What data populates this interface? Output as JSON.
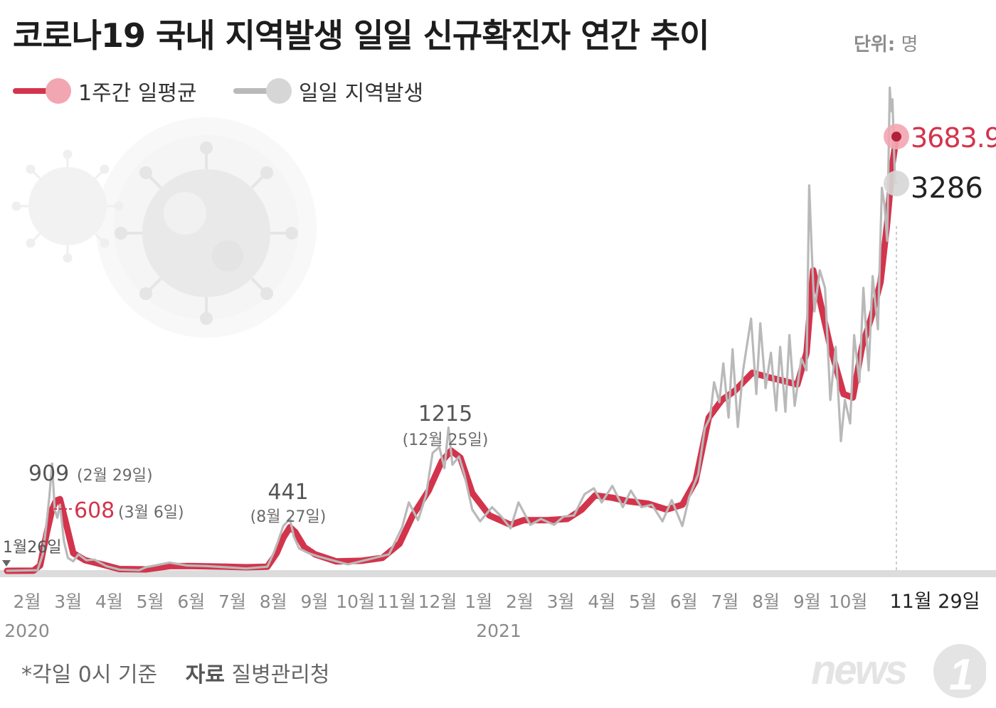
{
  "title": "코로나19 국내 지역발생 일일 신규확진자 연간 추이",
  "unit": {
    "label": "단위:",
    "value": "명"
  },
  "legend": [
    {
      "label": "1주간 일평균",
      "color": "#d3344c",
      "dot": "#f2a6b1"
    },
    {
      "label": "일일 지역발생",
      "color": "#b9b9b9",
      "dot": "#d6d6d6"
    }
  ],
  "footer": {
    "note": "*각일 0시 기준",
    "source_label": "자료",
    "source": "질병관리청"
  },
  "logo_text": "news1",
  "chart_data": {
    "type": "line",
    "title": "코로나19 국내 지역발생 일일 신규확진자 연간 추이",
    "x_unit": "date",
    "xlim": [
      "2020-01-26",
      "2021-11-29"
    ],
    "ylim": [
      0,
      4300
    ],
    "grid": false,
    "legend_position": "top-left",
    "x_tick_labels": [
      "2월",
      "3월",
      "4월",
      "5월",
      "6월",
      "7월",
      "8월",
      "9월",
      "10월",
      "11월",
      "12월",
      "1월",
      "2월",
      "3월",
      "4월",
      "5월",
      "6월",
      "7월",
      "8월",
      "9월",
      "10월"
    ],
    "x_end_label": "11월 29일",
    "year_labels": [
      "2020",
      "2021"
    ],
    "series": [
      {
        "name": "1주간 일평균",
        "color": "#d3344c",
        "points": [
          [
            "2020-01-26",
            0
          ],
          [
            "2020-02-15",
            2
          ],
          [
            "2020-02-20",
            45
          ],
          [
            "2020-02-25",
            320
          ],
          [
            "2020-02-29",
            520
          ],
          [
            "2020-03-03",
            595
          ],
          [
            "2020-03-06",
            608
          ],
          [
            "2020-03-10",
            430
          ],
          [
            "2020-03-16",
            150
          ],
          [
            "2020-03-25",
            90
          ],
          [
            "2020-04-05",
            60
          ],
          [
            "2020-04-20",
            15
          ],
          [
            "2020-05-10",
            12
          ],
          [
            "2020-05-28",
            40
          ],
          [
            "2020-06-15",
            40
          ],
          [
            "2020-07-10",
            35
          ],
          [
            "2020-07-25",
            30
          ],
          [
            "2020-08-10",
            35
          ],
          [
            "2020-08-17",
            150
          ],
          [
            "2020-08-22",
            280
          ],
          [
            "2020-08-27",
            370
          ],
          [
            "2020-08-31",
            330
          ],
          [
            "2020-09-07",
            200
          ],
          [
            "2020-09-15",
            140
          ],
          [
            "2020-10-01",
            80
          ],
          [
            "2020-10-20",
            85
          ],
          [
            "2020-11-05",
            110
          ],
          [
            "2020-11-18",
            230
          ],
          [
            "2020-11-28",
            470
          ],
          [
            "2020-12-10",
            680
          ],
          [
            "2020-12-20",
            930
          ],
          [
            "2020-12-27",
            1020
          ],
          [
            "2021-01-03",
            960
          ],
          [
            "2021-01-12",
            660
          ],
          [
            "2021-01-25",
            470
          ],
          [
            "2021-02-10",
            390
          ],
          [
            "2021-02-20",
            430
          ],
          [
            "2021-03-10",
            430
          ],
          [
            "2021-03-25",
            440
          ],
          [
            "2021-04-05",
            520
          ],
          [
            "2021-04-15",
            640
          ],
          [
            "2021-04-28",
            620
          ],
          [
            "2021-05-10",
            590
          ],
          [
            "2021-05-25",
            570
          ],
          [
            "2021-06-08",
            520
          ],
          [
            "2021-06-20",
            560
          ],
          [
            "2021-06-30",
            760
          ],
          [
            "2021-07-10",
            1300
          ],
          [
            "2021-07-20",
            1450
          ],
          [
            "2021-07-30",
            1530
          ],
          [
            "2021-08-12",
            1680
          ],
          [
            "2021-08-25",
            1640
          ],
          [
            "2021-09-05",
            1610
          ],
          [
            "2021-09-15",
            1580
          ],
          [
            "2021-09-22",
            1850
          ],
          [
            "2021-09-27",
            2550
          ],
          [
            "2021-10-03",
            2250
          ],
          [
            "2021-10-10",
            1900
          ],
          [
            "2021-10-20",
            1500
          ],
          [
            "2021-10-27",
            1470
          ],
          [
            "2021-11-03",
            1900
          ],
          [
            "2021-11-10",
            2150
          ],
          [
            "2021-11-17",
            2450
          ],
          [
            "2021-11-22",
            2950
          ],
          [
            "2021-11-26",
            3450
          ],
          [
            "2021-11-29",
            3683.9
          ]
        ]
      },
      {
        "name": "일일 지역발생",
        "color": "#b9b9b9",
        "points": [
          [
            "2020-01-26",
            0
          ],
          [
            "2020-02-18",
            5
          ],
          [
            "2020-02-22",
            140
          ],
          [
            "2020-02-25",
            420
          ],
          [
            "2020-02-27",
            630
          ],
          [
            "2020-02-29",
            909
          ],
          [
            "2020-03-02",
            520
          ],
          [
            "2020-03-04",
            450
          ],
          [
            "2020-03-06",
            560
          ],
          [
            "2020-03-09",
            250
          ],
          [
            "2020-03-12",
            110
          ],
          [
            "2020-03-16",
            80
          ],
          [
            "2020-03-20",
            140
          ],
          [
            "2020-03-26",
            90
          ],
          [
            "2020-04-01",
            95
          ],
          [
            "2020-04-10",
            40
          ],
          [
            "2020-04-20",
            10
          ],
          [
            "2020-05-05",
            5
          ],
          [
            "2020-05-10",
            30
          ],
          [
            "2020-05-28",
            70
          ],
          [
            "2020-06-10",
            45
          ],
          [
            "2020-06-25",
            40
          ],
          [
            "2020-07-10",
            30
          ],
          [
            "2020-07-25",
            20
          ],
          [
            "2020-08-10",
            35
          ],
          [
            "2020-08-15",
            160
          ],
          [
            "2020-08-18",
            250
          ],
          [
            "2020-08-22",
            380
          ],
          [
            "2020-08-27",
            441
          ],
          [
            "2020-08-30",
            290
          ],
          [
            "2020-09-03",
            190
          ],
          [
            "2020-09-10",
            150
          ],
          [
            "2020-09-18",
            120
          ],
          [
            "2020-10-01",
            80
          ],
          [
            "2020-10-10",
            55
          ],
          [
            "2020-10-25",
            95
          ],
          [
            "2020-11-10",
            140
          ],
          [
            "2020-11-20",
            370
          ],
          [
            "2020-11-25",
            580
          ],
          [
            "2020-12-02",
            430
          ],
          [
            "2020-12-08",
            640
          ],
          [
            "2020-12-13",
            1000
          ],
          [
            "2020-12-18",
            1050
          ],
          [
            "2020-12-22",
            870
          ],
          [
            "2020-12-25",
            1215
          ],
          [
            "2020-12-28",
            900
          ],
          [
            "2021-01-02",
            970
          ],
          [
            "2021-01-06",
            820
          ],
          [
            "2021-01-12",
            520
          ],
          [
            "2021-01-18",
            420
          ],
          [
            "2021-01-27",
            540
          ],
          [
            "2021-02-03",
            460
          ],
          [
            "2021-02-10",
            360
          ],
          [
            "2021-02-16",
            580
          ],
          [
            "2021-02-25",
            390
          ],
          [
            "2021-03-05",
            440
          ],
          [
            "2021-03-15",
            390
          ],
          [
            "2021-03-22",
            460
          ],
          [
            "2021-03-30",
            470
          ],
          [
            "2021-04-07",
            650
          ],
          [
            "2021-04-14",
            700
          ],
          [
            "2021-04-20",
            580
          ],
          [
            "2021-04-28",
            720
          ],
          [
            "2021-05-06",
            540
          ],
          [
            "2021-05-12",
            680
          ],
          [
            "2021-05-20",
            540
          ],
          [
            "2021-05-28",
            560
          ],
          [
            "2021-06-05",
            420
          ],
          [
            "2021-06-12",
            600
          ],
          [
            "2021-06-20",
            380
          ],
          [
            "2021-06-25",
            620
          ],
          [
            "2021-07-02",
            820
          ],
          [
            "2021-07-07",
            1210
          ],
          [
            "2021-07-11",
            1300
          ],
          [
            "2021-07-14",
            1600
          ],
          [
            "2021-07-18",
            1430
          ],
          [
            "2021-07-21",
            1760
          ],
          [
            "2021-07-25",
            1300
          ],
          [
            "2021-07-28",
            1880
          ],
          [
            "2021-08-01",
            1220
          ],
          [
            "2021-08-05",
            1700
          ],
          [
            "2021-08-11",
            2140
          ],
          [
            "2021-08-15",
            1500
          ],
          [
            "2021-08-18",
            2100
          ],
          [
            "2021-08-22",
            1550
          ],
          [
            "2021-08-26",
            1850
          ],
          [
            "2021-08-30",
            1360
          ],
          [
            "2021-09-02",
            1900
          ],
          [
            "2021-09-06",
            1350
          ],
          [
            "2021-09-09",
            2000
          ],
          [
            "2021-09-13",
            1400
          ],
          [
            "2021-09-18",
            1800
          ],
          [
            "2021-09-22",
            1700
          ],
          [
            "2021-09-24",
            3270
          ],
          [
            "2021-09-26",
            2700
          ],
          [
            "2021-09-28",
            2200
          ],
          [
            "2021-10-02",
            2550
          ],
          [
            "2021-10-06",
            2400
          ],
          [
            "2021-10-10",
            1450
          ],
          [
            "2021-10-14",
            1900
          ],
          [
            "2021-10-18",
            1100
          ],
          [
            "2021-10-21",
            1450
          ],
          [
            "2021-10-25",
            1250
          ],
          [
            "2021-10-28",
            2000
          ],
          [
            "2021-11-01",
            1600
          ],
          [
            "2021-11-04",
            2400
          ],
          [
            "2021-11-08",
            1700
          ],
          [
            "2021-11-11",
            2500
          ],
          [
            "2021-11-15",
            2050
          ],
          [
            "2021-11-18",
            3250
          ],
          [
            "2021-11-20",
            3100
          ],
          [
            "2021-11-22",
            2800
          ],
          [
            "2021-11-24",
            4100
          ],
          [
            "2021-11-25",
            3900
          ],
          [
            "2021-11-26",
            4000
          ],
          [
            "2021-11-28",
            3300
          ],
          [
            "2021-11-29",
            3286
          ]
        ]
      }
    ],
    "annotations": [
      {
        "date": "2020-02-29",
        "value": 909,
        "text": "909",
        "sub": "(2월 29일)",
        "color": "#555555"
      },
      {
        "date": "2020-03-06",
        "value": 608,
        "text": "608",
        "sub": "(3월 6일)",
        "color": "#d3344c"
      },
      {
        "date": "2020-08-27",
        "value": 441,
        "text": "441",
        "sub": "(8월 27일)",
        "color": "#555555"
      },
      {
        "date": "2020-12-25",
        "value": 1215,
        "text": "1215",
        "sub": "(12월 25일)",
        "color": "#555555"
      },
      {
        "date": "2020-01-26",
        "value": 0,
        "text": "1월26일",
        "sub": "",
        "color": "#555555"
      }
    ],
    "end_values": [
      {
        "series": "1주간 일평균",
        "text": "3683.9",
        "color": "#d3344c",
        "dot": "#f2a6b1"
      },
      {
        "series": "일일 지역발생",
        "text": "3286",
        "color": "#222222",
        "dot": "#d6d6d6"
      }
    ]
  }
}
